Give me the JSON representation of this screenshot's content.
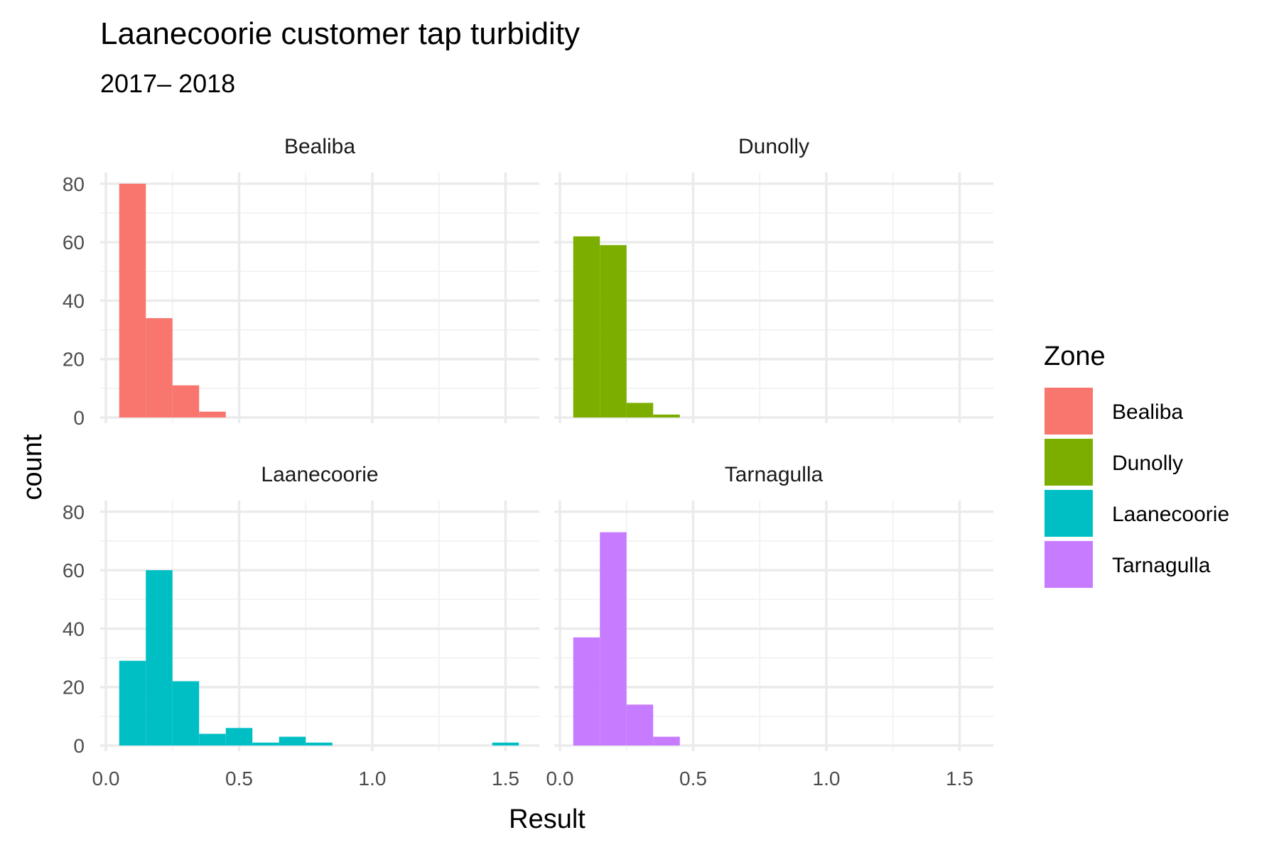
{
  "chart_data": {
    "type": "bar",
    "title": "Laanecoorie customer tap turbidity",
    "subtitle": "2017– 2018",
    "xlabel": "Result",
    "ylabel": "count",
    "xlim": [
      0,
      1.55
    ],
    "ylim": [
      0,
      80
    ],
    "x_ticks": [
      0.0,
      0.5,
      1.0,
      1.5
    ],
    "x_tick_labels": [
      "0.0",
      "0.5",
      "1.0",
      "1.5"
    ],
    "y_ticks": [
      0,
      20,
      40,
      60,
      80
    ],
    "y_tick_labels": [
      "0",
      "20",
      "40",
      "60",
      "80"
    ],
    "bin_width": 0.1,
    "grid": true,
    "legend": {
      "title": "Zone",
      "position": "right",
      "items": [
        {
          "label": "Bealiba",
          "color": "#F8766D"
        },
        {
          "label": "Dunolly",
          "color": "#7CAE00"
        },
        {
          "label": "Laanecoorie",
          "color": "#00BFC4"
        },
        {
          "label": "Tarnagulla",
          "color": "#C77CFF"
        }
      ]
    },
    "panels": [
      {
        "name": "Bealiba",
        "color": "#F8766D",
        "bins": [
          {
            "x": 0.1,
            "count": 80
          },
          {
            "x": 0.2,
            "count": 34
          },
          {
            "x": 0.3,
            "count": 11
          },
          {
            "x": 0.4,
            "count": 2
          }
        ]
      },
      {
        "name": "Dunolly",
        "color": "#7CAE00",
        "bins": [
          {
            "x": 0.1,
            "count": 62
          },
          {
            "x": 0.2,
            "count": 59
          },
          {
            "x": 0.3,
            "count": 5
          },
          {
            "x": 0.4,
            "count": 1
          }
        ]
      },
      {
        "name": "Laanecoorie",
        "color": "#00BFC4",
        "bins": [
          {
            "x": 0.1,
            "count": 29
          },
          {
            "x": 0.2,
            "count": 60
          },
          {
            "x": 0.3,
            "count": 22
          },
          {
            "x": 0.4,
            "count": 4
          },
          {
            "x": 0.5,
            "count": 6
          },
          {
            "x": 0.6,
            "count": 1
          },
          {
            "x": 0.7,
            "count": 3
          },
          {
            "x": 0.8,
            "count": 1
          },
          {
            "x": 1.5,
            "count": 1
          }
        ]
      },
      {
        "name": "Tarnagulla",
        "color": "#C77CFF",
        "bins": [
          {
            "x": 0.1,
            "count": 37
          },
          {
            "x": 0.2,
            "count": 73
          },
          {
            "x": 0.3,
            "count": 14
          },
          {
            "x": 0.4,
            "count": 3
          }
        ]
      }
    ]
  }
}
